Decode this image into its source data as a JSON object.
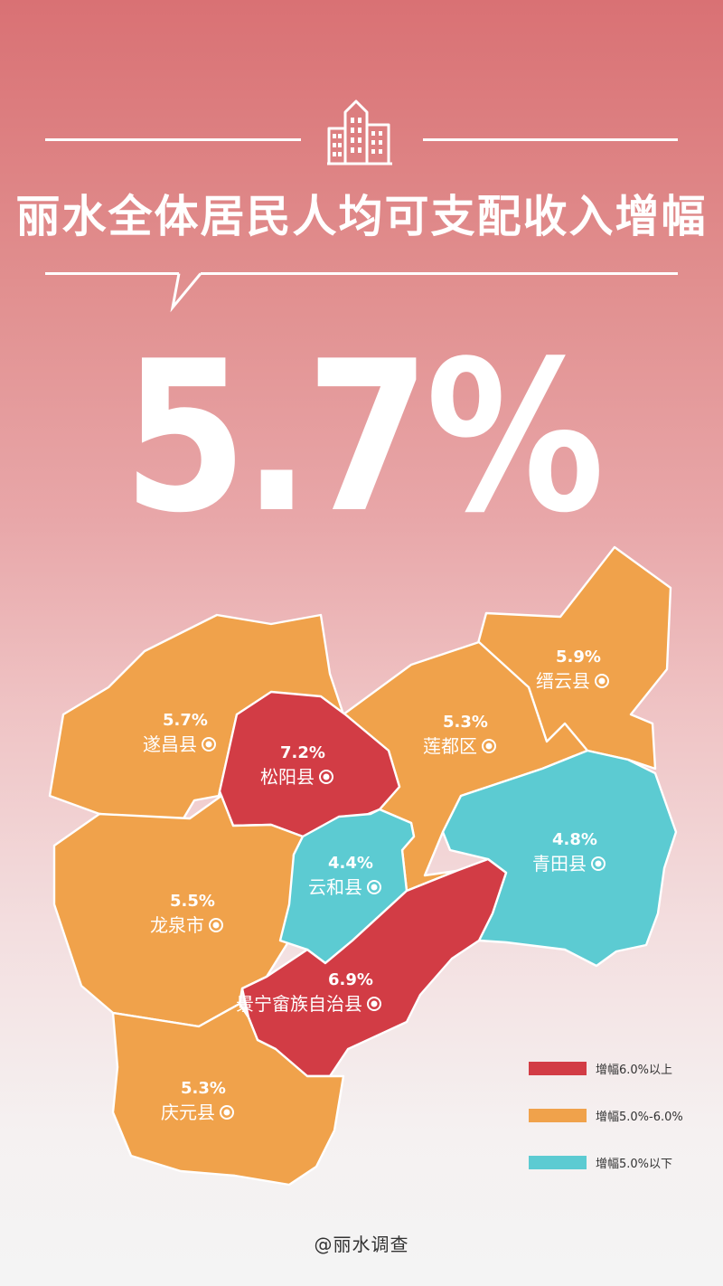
{
  "title": "丽水全体居民人均可支配收入增幅",
  "headline_value": "5.7%",
  "colors": {
    "above_6": "#d23c45",
    "between_5_6": "#f0a24b",
    "below_5": "#5ccbd2",
    "text": "#ffffff"
  },
  "regions": [
    {
      "name": "遂昌县",
      "value": "5.7%",
      "category": "between_5_6"
    },
    {
      "name": "松阳县",
      "value": "7.2%",
      "category": "above_6"
    },
    {
      "name": "莲都区",
      "value": "5.3%",
      "category": "between_5_6"
    },
    {
      "name": "缙云县",
      "value": "5.9%",
      "category": "between_5_6"
    },
    {
      "name": "青田县",
      "value": "4.8%",
      "category": "below_5"
    },
    {
      "name": "云和县",
      "value": "4.4%",
      "category": "below_5"
    },
    {
      "name": "龙泉市",
      "value": "5.5%",
      "category": "between_5_6"
    },
    {
      "name": "景宁畲族自治县",
      "value": "6.9%",
      "category": "above_6"
    },
    {
      "name": "庆元县",
      "value": "5.3%",
      "category": "between_5_6"
    }
  ],
  "legend": [
    {
      "label": "增幅6.0%以上",
      "category": "above_6"
    },
    {
      "label": "增幅5.0%-6.0%",
      "category": "between_5_6"
    },
    {
      "label": "增幅5.0%以下",
      "category": "below_5"
    }
  ],
  "credit": "@丽水调查",
  "icon": "city-buildings-icon"
}
